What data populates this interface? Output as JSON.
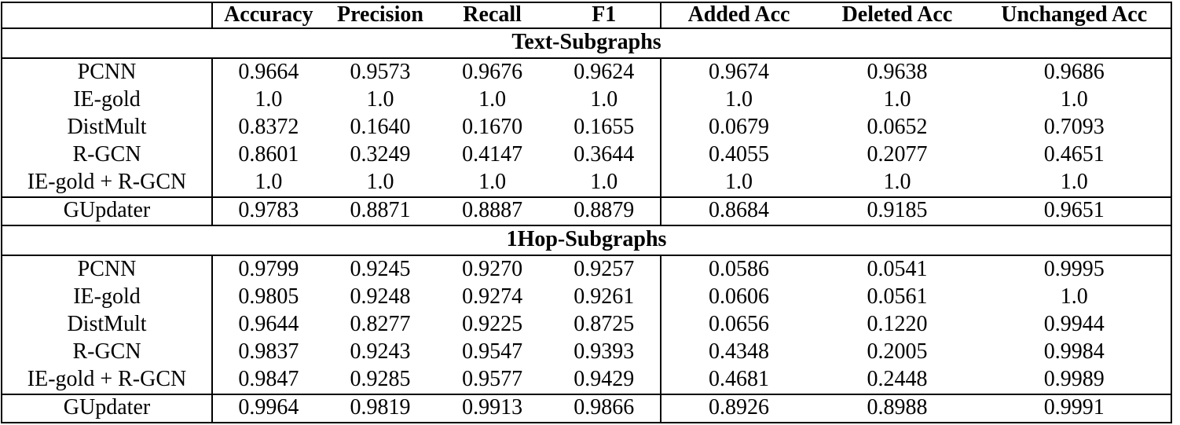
{
  "colors": {
    "text": "#000000",
    "border": "#000000",
    "background": "#ffffff"
  },
  "table": {
    "columns": [
      "",
      "Accuracy",
      "Precision",
      "Recall",
      "F1",
      "Added Acc",
      "Deleted Acc",
      "Unchanged Acc"
    ],
    "sections": [
      {
        "title": "Text-Subgraphs",
        "rows": [
          {
            "model": "PCNN",
            "values": [
              "0.9664",
              "0.9573",
              "0.9676",
              "0.9624",
              "0.9674",
              "0.9638",
              "0.9686"
            ]
          },
          {
            "model": "IE-gold",
            "values": [
              "1.0",
              "1.0",
              "1.0",
              "1.0",
              "1.0",
              "1.0",
              "1.0"
            ]
          },
          {
            "model": "DistMult",
            "values": [
              "0.8372",
              "0.1640",
              "0.1670",
              "0.1655",
              "0.0679",
              "0.0652",
              "0.7093"
            ]
          },
          {
            "model": "R-GCN",
            "values": [
              "0.8601",
              "0.3249",
              "0.4147",
              "0.3644",
              "0.4055",
              "0.2077",
              "0.4651"
            ]
          },
          {
            "model": "IE-gold + R-GCN",
            "values": [
              "1.0",
              "1.0",
              "1.0",
              "1.0",
              "1.0",
              "1.0",
              "1.0"
            ]
          }
        ],
        "highlight_row": {
          "model": "GUpdater",
          "values": [
            "0.9783",
            "0.8871",
            "0.8887",
            "0.8879",
            "0.8684",
            "0.9185",
            "0.9651"
          ]
        }
      },
      {
        "title": "1Hop-Subgraphs",
        "rows": [
          {
            "model": "PCNN",
            "values": [
              "0.9799",
              "0.9245",
              "0.9270",
              "0.9257",
              "0.0586",
              "0.0541",
              "0.9995"
            ]
          },
          {
            "model": "IE-gold",
            "values": [
              "0.9805",
              "0.9248",
              "0.9274",
              "0.9261",
              "0.0606",
              "0.0561",
              "1.0"
            ]
          },
          {
            "model": "DistMult",
            "values": [
              "0.9644",
              "0.8277",
              "0.9225",
              "0.8725",
              "0.0656",
              "0.1220",
              "0.9944"
            ]
          },
          {
            "model": "R-GCN",
            "values": [
              "0.9837",
              "0.9243",
              "0.9547",
              "0.9393",
              "0.4348",
              "0.2005",
              "0.9984"
            ]
          },
          {
            "model": "IE-gold + R-GCN",
            "values": [
              "0.9847",
              "0.9285",
              "0.9577",
              "0.9429",
              "0.4681",
              "0.2448",
              "0.9989"
            ]
          }
        ],
        "highlight_row": {
          "model": "GUpdater",
          "values": [
            "0.9964",
            "0.9819",
            "0.9913",
            "0.9866",
            "0.8926",
            "0.8988",
            "0.9991"
          ]
        }
      }
    ]
  }
}
